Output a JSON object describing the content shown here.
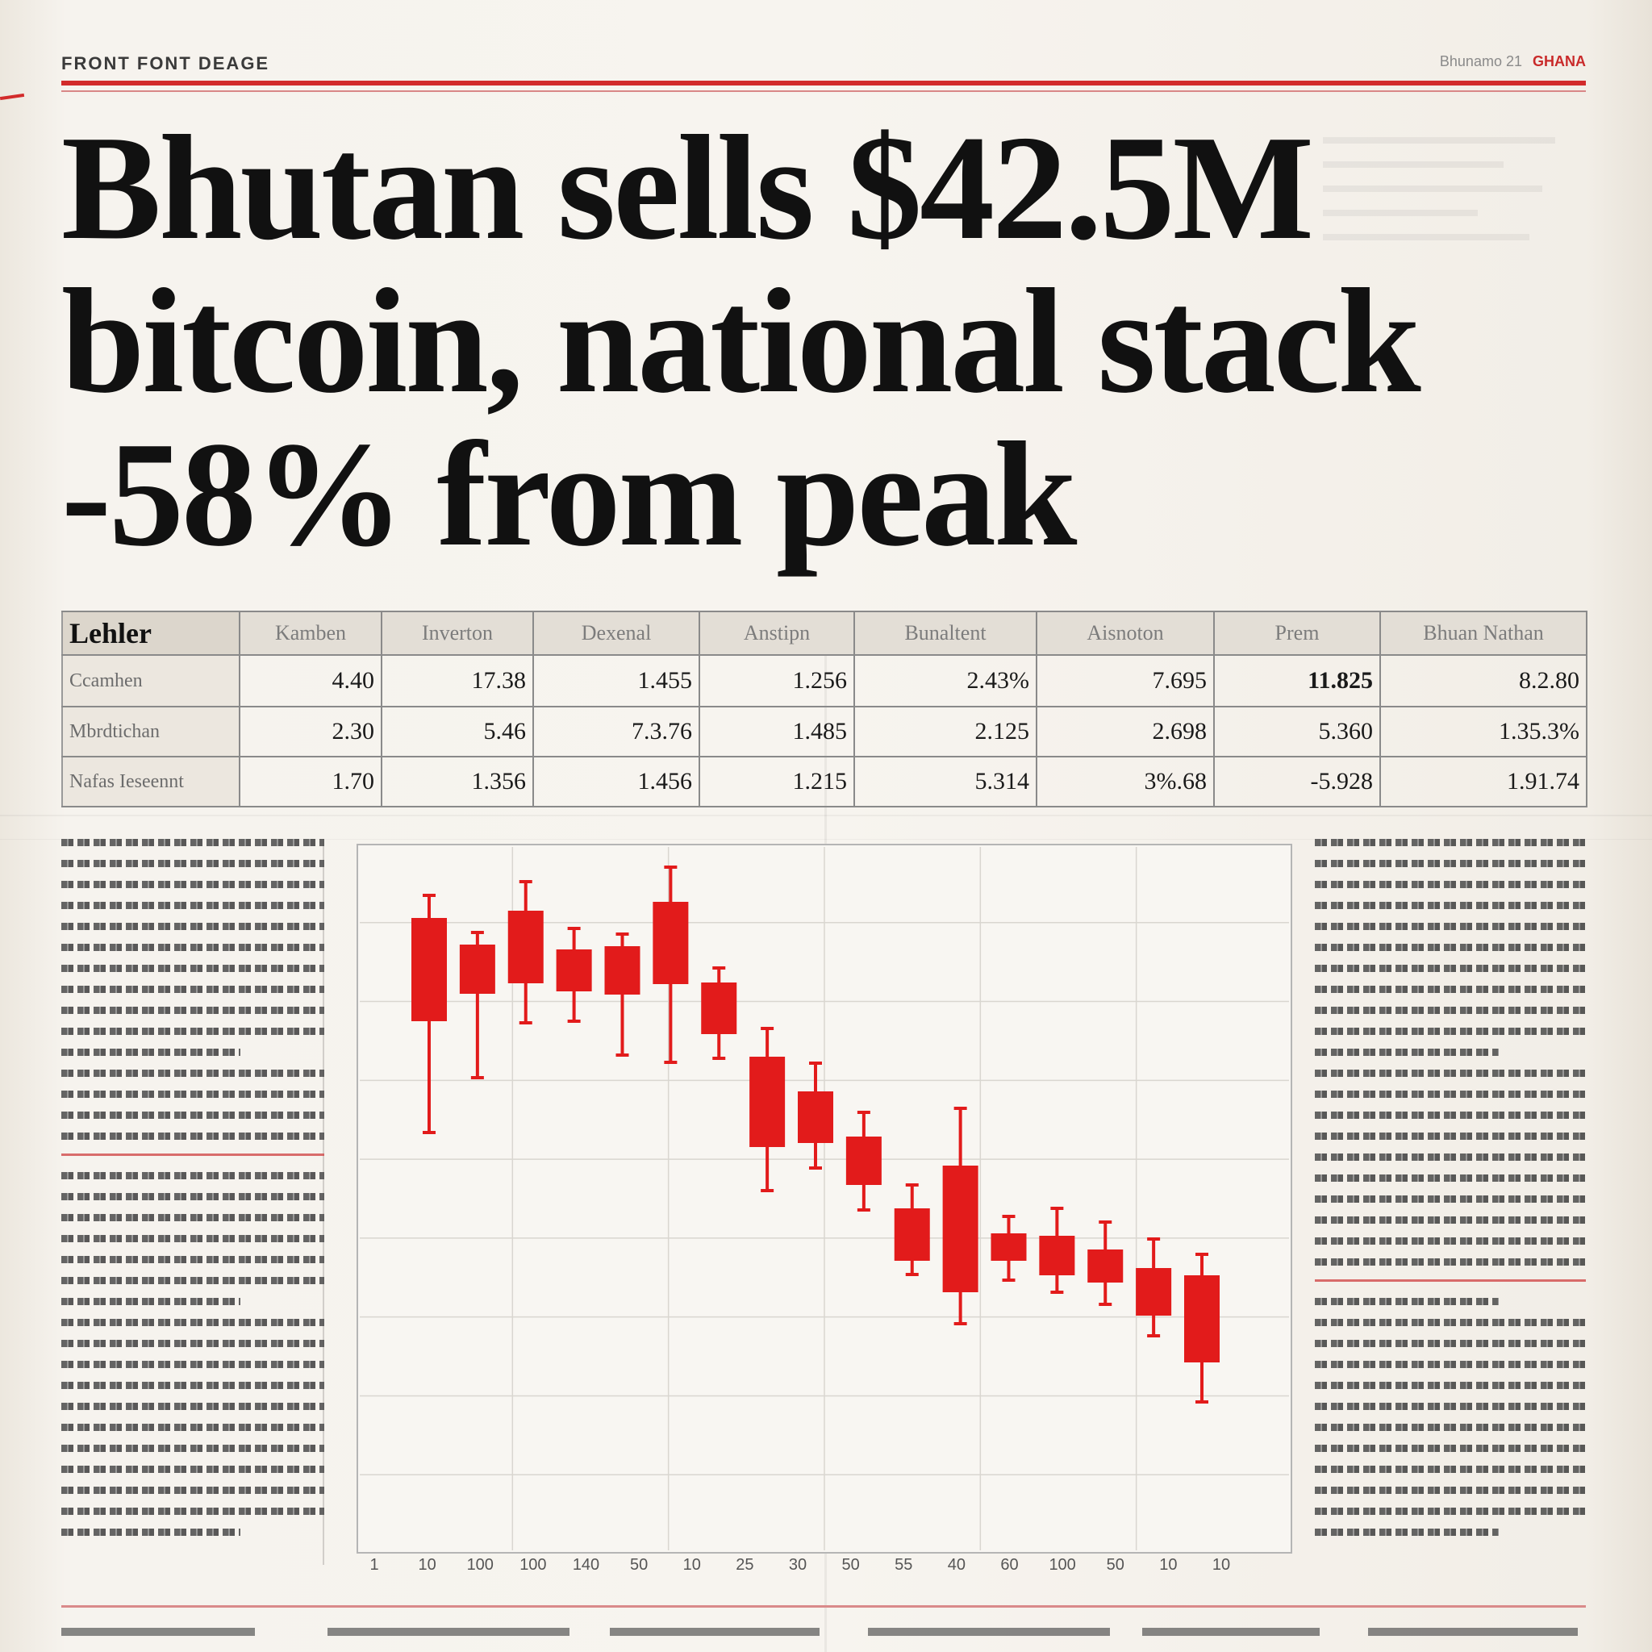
{
  "masthead": {
    "section": "FRONT FONT DEAGE",
    "date": "Bhunamo 21",
    "tag": "GHANA"
  },
  "headline": {
    "line1": "Bhutan sells $42.5M",
    "line2": "bitcoin, national stack",
    "line3": "-58% from peak"
  },
  "table": {
    "headers": [
      "Lehler",
      "Kamben",
      "Inverton",
      "Dexenal",
      "Anstipn",
      "Bunaltent",
      "Aisnoton",
      "Prem",
      "Bhuan Nathan"
    ],
    "rows": [
      [
        "Ccamhen",
        "4.40",
        "17.38",
        "1.455",
        "1.256",
        "2.43%",
        "7.695",
        "11.825",
        "8.2.80"
      ],
      [
        "Mbrdtichan",
        "2.30",
        "5.46",
        "7.3.76",
        "1.485",
        "2.125",
        "2.698",
        "5.360",
        "1.35.3%"
      ],
      [
        "Nafas Ieseennt",
        "1.70",
        "1.356",
        "1.456",
        "1.215",
        "5.314",
        "3%.68",
        "-5.928",
        "1.91.74"
      ]
    ]
  },
  "colors": {
    "accent_red": "#d22b2b",
    "candle_red": "#e21b1b",
    "ink": "#111111",
    "paper": "#f6f3ee"
  },
  "chart_data": {
    "type": "candlestick",
    "title": "",
    "xlabel": "",
    "ylabel": "",
    "x_ticks": [
      "1",
      "10",
      "100",
      "100",
      "140",
      "50",
      "10",
      "25",
      "30",
      "50",
      "55",
      "40",
      "60",
      "100",
      "50",
      "10",
      "10"
    ],
    "ylim": [
      0,
      880
    ],
    "grid": true,
    "candles": [
      {
        "open": 788,
        "close": 660,
        "high": 816,
        "low": 522
      },
      {
        "open": 755,
        "close": 694,
        "high": 770,
        "low": 590
      },
      {
        "open": 797,
        "close": 707,
        "high": 833,
        "low": 658
      },
      {
        "open": 749,
        "close": 697,
        "high": 775,
        "low": 660
      },
      {
        "open": 753,
        "close": 693,
        "high": 768,
        "low": 618
      },
      {
        "open": 808,
        "close": 706,
        "high": 851,
        "low": 609
      },
      {
        "open": 708,
        "close": 644,
        "high": 726,
        "low": 614
      },
      {
        "open": 616,
        "close": 504,
        "high": 651,
        "low": 450
      },
      {
        "open": 573,
        "close": 509,
        "high": 608,
        "low": 478
      },
      {
        "open": 517,
        "close": 457,
        "high": 547,
        "low": 426
      },
      {
        "open": 428,
        "close": 363,
        "high": 457,
        "low": 346
      },
      {
        "open": 481,
        "close": 324,
        "high": 552,
        "low": 285
      },
      {
        "open": 397,
        "close": 363,
        "high": 418,
        "low": 339
      },
      {
        "open": 394,
        "close": 345,
        "high": 428,
        "low": 324
      },
      {
        "open": 377,
        "close": 336,
        "high": 411,
        "low": 309
      },
      {
        "open": 354,
        "close": 295,
        "high": 390,
        "low": 270
      },
      {
        "open": 345,
        "close": 237,
        "high": 371,
        "low": 188
      }
    ]
  }
}
